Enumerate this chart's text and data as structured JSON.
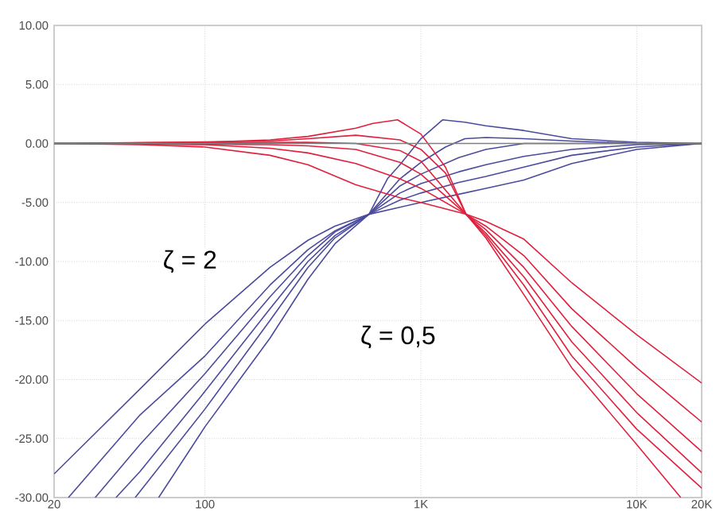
{
  "chart_data": {
    "type": "line",
    "log": "x",
    "grid": true,
    "xlim": [
      20,
      20000
    ],
    "ylim": [
      -30,
      10
    ],
    "xticks": [
      20,
      100,
      {
        "value": 1000,
        "label": "1K"
      },
      {
        "value": 10000,
        "label": "10K"
      },
      {
        "value": 20000,
        "label": "20K"
      }
    ],
    "yticks": [
      {
        "value": -30,
        "label": "-30.00"
      },
      {
        "value": -25,
        "label": "-25.00"
      },
      {
        "value": -20,
        "label": "-20.00"
      },
      {
        "value": -15,
        "label": "-15.00"
      },
      {
        "value": -10,
        "label": "-10.00"
      },
      {
        "value": -5,
        "label": "-5.00"
      },
      {
        "value": 0,
        "label": "0.00"
      },
      {
        "value": 5,
        "label": "5.00"
      },
      {
        "value": 10,
        "label": "10.00"
      }
    ],
    "annotations": [
      "ζ = 2",
      "ζ = 0,5"
    ],
    "series": [
      {
        "color": "#808080",
        "x": [
          20,
          20000
        ],
        "values": [
          0,
          0
        ]
      },
      {
        "color": "#4b4b9e",
        "x": [
          20,
          50,
          100,
          200,
          300,
          400,
          575,
          800,
          1000,
          1500,
          2000,
          3000,
          5000,
          10000,
          20000
        ],
        "values": [
          -28,
          -20.8,
          -15.3,
          -10.5,
          -8.2,
          -7,
          -6,
          -5.4,
          -5,
          -4.3,
          -3.8,
          -3.1,
          -1.7,
          -0.5,
          0
        ]
      },
      {
        "color": "#4b4b9e",
        "x": [
          23.3,
          50,
          100,
          200,
          300,
          400,
          575,
          800,
          1000,
          1500,
          2000,
          3000,
          5000,
          10000,
          20000
        ],
        "values": [
          -30,
          -23,
          -18,
          -12,
          -9,
          -7.4,
          -6,
          -4.8,
          -4.2,
          -3.3,
          -2.8,
          -2,
          -1,
          -0.3,
          0
        ]
      },
      {
        "color": "#4b4b9e",
        "x": [
          31,
          50,
          100,
          200,
          300,
          400,
          575,
          800,
          1000,
          1500,
          2000,
          3000,
          5000,
          10000,
          20000
        ],
        "values": [
          -30,
          -25.5,
          -19.5,
          -13,
          -9.5,
          -7.5,
          -6,
          -4.2,
          -3.4,
          -2.4,
          -1.8,
          -1.1,
          -0.5,
          -0.1,
          0
        ]
      },
      {
        "color": "#4b4b9e",
        "x": [
          38.7,
          50,
          100,
          200,
          300,
          400,
          575,
          800,
          1000,
          1500,
          2000,
          3000,
          5000,
          10000,
          20000
        ],
        "values": [
          -30,
          -27.8,
          -21,
          -14,
          -10,
          -7.8,
          -6,
          -3.6,
          -2.6,
          -1.2,
          -0.5,
          0,
          0,
          0,
          0
        ]
      },
      {
        "color": "#4b4b9e",
        "x": [
          47.5,
          100,
          200,
          300,
          400,
          575,
          800,
          1000,
          1300,
          1600,
          2000,
          3000,
          5000,
          10000,
          20000
        ],
        "values": [
          -30,
          -22.5,
          -15,
          -10.5,
          -8,
          -6,
          -3,
          -1.6,
          -0.3,
          0.4,
          0.5,
          0.4,
          0.2,
          0,
          0
        ]
      },
      {
        "color": "#4b4b9e",
        "x": [
          61,
          100,
          200,
          300,
          400,
          575,
          700,
          800,
          1000,
          1260,
          1600,
          2000,
          3000,
          5000,
          10000,
          20000
        ],
        "values": [
          -30,
          -24,
          -16.5,
          -11.5,
          -8.5,
          -6,
          -3,
          -1.8,
          0.4,
          2,
          1.8,
          1.5,
          1.1,
          0.4,
          0.1,
          0
        ]
      },
      {
        "color": "#e0203c",
        "x": [
          20,
          50,
          100,
          200,
          300,
          500,
          800,
          1000,
          1620,
          2000,
          3000,
          5000,
          10000,
          20000
        ],
        "values": [
          0,
          -0.1,
          -0.3,
          -1,
          -1.8,
          -3.5,
          -4.6,
          -5,
          -6,
          -6.6,
          -8.1,
          -11.8,
          -16.2,
          -20.3
        ]
      },
      {
        "color": "#e0203c",
        "x": [
          20,
          100,
          200,
          300,
          500,
          800,
          1000,
          1620,
          2000,
          3000,
          5000,
          10000,
          20000
        ],
        "values": [
          0,
          -0.1,
          -0.4,
          -0.8,
          -1.7,
          -3,
          -3.8,
          -6,
          -7,
          -9.5,
          -14,
          -19,
          -23.6
        ]
      },
      {
        "color": "#e0203c",
        "x": [
          20,
          200,
          300,
          500,
          800,
          1000,
          1620,
          2000,
          3000,
          5000,
          10000,
          20000
        ],
        "values": [
          0,
          -0.1,
          -0.2,
          -0.5,
          -1.6,
          -2.6,
          -6,
          -7.3,
          -10.5,
          -15.5,
          -21.2,
          -26.1
        ]
      },
      {
        "color": "#e0203c",
        "x": [
          20,
          300,
          500,
          800,
          1000,
          1620,
          2000,
          3000,
          5000,
          10000,
          20000
        ],
        "values": [
          0,
          0.1,
          0,
          -0.6,
          -1.5,
          -6,
          -7.6,
          -11.3,
          -16.8,
          -22.8,
          -27.9
        ]
      },
      {
        "color": "#e0203c",
        "x": [
          20,
          200,
          300,
          500,
          800,
          1000,
          1300,
          1620,
          2000,
          3000,
          5000,
          10000,
          20000
        ],
        "values": [
          0,
          0.2,
          0.4,
          0.7,
          0.3,
          -0.5,
          -2.5,
          -6,
          -7.8,
          -12,
          -18,
          -24.2,
          -29.2
        ]
      },
      {
        "color": "#e0203c",
        "x": [
          20,
          100,
          200,
          300,
          500,
          600,
          780,
          1000,
          1300,
          1620,
          2000,
          3000,
          5000,
          10000,
          16000
        ],
        "values": [
          0,
          0.1,
          0.3,
          0.6,
          1.3,
          1.7,
          2,
          0.8,
          -2,
          -6,
          -8,
          -12.8,
          -19,
          -25.5,
          -30
        ]
      }
    ]
  }
}
